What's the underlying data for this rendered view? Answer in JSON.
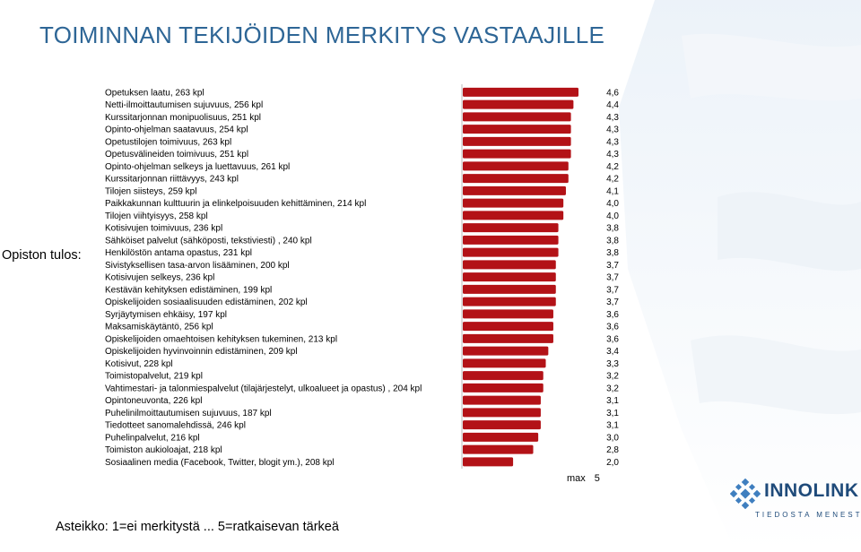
{
  "title": "TOIMINNAN TEKIJÖIDEN MERKITYS VASTAAJILLE",
  "side_label": "Opiston tulos:",
  "max_label": "max",
  "max_value": "5",
  "footnote": "Asteikko: 1=ei merkitystä ... 5=ratkaisevan tärkeä",
  "logo": {
    "name": "INNOLINK",
    "tagline": "TIEDOSTA MENESTYS"
  },
  "colors": {
    "bar": "#b31217",
    "title": "#2e6696",
    "logo": "#1f4b7a"
  },
  "chart_data": {
    "type": "bar",
    "orientation": "horizontal",
    "xlim": [
      0,
      5
    ],
    "grid": false,
    "categories": [
      "Opetuksen laatu, 263 kpl",
      "Netti-ilmoittautumisen sujuvuus, 256 kpl",
      "Kurssitarjonnan monipuolisuus, 251 kpl",
      "Opinto-ohjelman saatavuus, 254 kpl",
      "Opetustilojen toimivuus, 263 kpl",
      "Opetusvälineiden toimivuus, 251 kpl",
      "Opinto-ohjelman selkeys ja luettavuus, 261 kpl",
      "Kurssitarjonnan riittävyys, 243 kpl",
      "Tilojen siisteys, 259 kpl",
      "Paikkakunnan kulttuurin ja elinkelpoisuuden kehittäminen, 214 kpl",
      "Tilojen viihtyisyys, 258 kpl",
      "Kotisivujen toimivuus, 236 kpl",
      "Sähköiset palvelut (sähköposti, tekstiviesti) , 240 kpl",
      "Henkilöstön antama opastus, 231 kpl",
      "Sivistyksellisen tasa-arvon lisääminen, 200 kpl",
      "Kotisivujen selkeys, 236 kpl",
      "Kestävän kehityksen edistäminen, 199 kpl",
      "Opiskelijoiden sosiaalisuuden edistäminen, 202 kpl",
      "Syrjäytymisen ehkäisy, 197 kpl",
      "Maksamiskäytäntö, 256 kpl",
      "Opiskelijoiden omaehtoisen kehityksen tukeminen, 213 kpl",
      "Opiskelijoiden hyvinvoinnin edistäminen, 209 kpl",
      "Kotisivut, 228 kpl",
      "Toimistopalvelut, 219 kpl",
      "Vahtimestari- ja talonmiespalvelut (tilajärjestelyt, ulkoalueet ja opastus) , 204 kpl",
      "Opintoneuvonta, 226 kpl",
      "Puhelinilmoittautumisen sujuvuus, 187 kpl",
      "Tiedotteet sanomalehdissä, 246 kpl",
      "Puhelinpalvelut, 216 kpl",
      "Toimiston aukioloajat, 218 kpl",
      "Sosiaalinen media (Facebook, Twitter, blogit ym.), 208 kpl"
    ],
    "values": [
      4.6,
      4.4,
      4.3,
      4.3,
      4.3,
      4.3,
      4.2,
      4.2,
      4.1,
      4.0,
      4.0,
      3.8,
      3.8,
      3.8,
      3.7,
      3.7,
      3.7,
      3.7,
      3.6,
      3.6,
      3.6,
      3.4,
      3.3,
      3.2,
      3.2,
      3.1,
      3.1,
      3.1,
      3.0,
      2.8,
      2.0
    ],
    "value_labels": [
      "4,6",
      "4,4",
      "4,3",
      "4,3",
      "4,3",
      "4,3",
      "4,2",
      "4,2",
      "4,1",
      "4,0",
      "4,0",
      "3,8",
      "3,8",
      "3,8",
      "3,7",
      "3,7",
      "3,7",
      "3,7",
      "3,6",
      "3,6",
      "3,6",
      "3,4",
      "3,3",
      "3,2",
      "3,2",
      "3,1",
      "3,1",
      "3,1",
      "3,0",
      "2,8",
      "2,0"
    ]
  }
}
